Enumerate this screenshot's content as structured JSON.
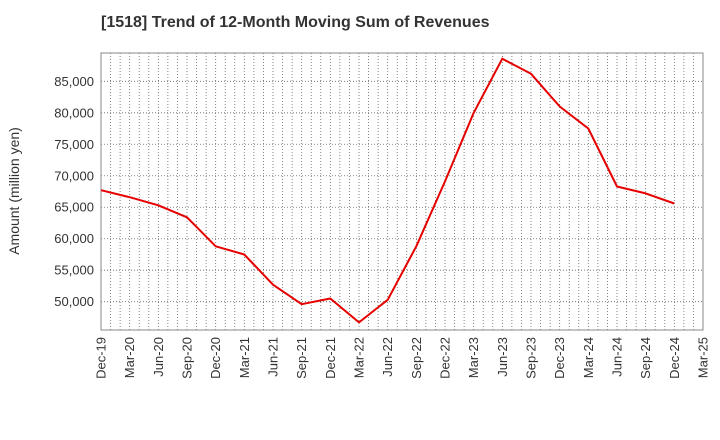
{
  "chart_data": {
    "type": "line",
    "title": "[1518]  Trend of 12-Month Moving Sum of Revenues",
    "xlabel": "",
    "ylabel": "Amount (million yen)",
    "categories": [
      "Dec-19",
      "Mar-20",
      "Jun-20",
      "Sep-20",
      "Dec-20",
      "Mar-21",
      "Jun-21",
      "Sep-21",
      "Dec-21",
      "Mar-22",
      "Jun-22",
      "Sep-22",
      "Dec-22",
      "Mar-23",
      "Jun-23",
      "Sep-23",
      "Dec-23",
      "Mar-24",
      "Jun-24",
      "Sep-24",
      "Dec-24",
      "Mar-25"
    ],
    "series": [
      {
        "values": [
          67700,
          66600,
          65300,
          63400,
          58800,
          57500,
          52700,
          49600,
          50500,
          46700,
          50300,
          58800,
          69100,
          80000,
          88600,
          86200,
          81000,
          77500,
          68300,
          67200,
          65600,
          null
        ],
        "color": "#e60000"
      }
    ],
    "ylim": [
      45500,
      89500
    ],
    "yticks": [
      50000,
      55000,
      60000,
      65000,
      70000,
      75000,
      80000,
      85000
    ],
    "ytick_labels": [
      "50,000",
      "55,000",
      "60,000",
      "65,000",
      "70,000",
      "75,000",
      "80,000",
      "85,000"
    ],
    "grid": true,
    "legend": "none"
  }
}
